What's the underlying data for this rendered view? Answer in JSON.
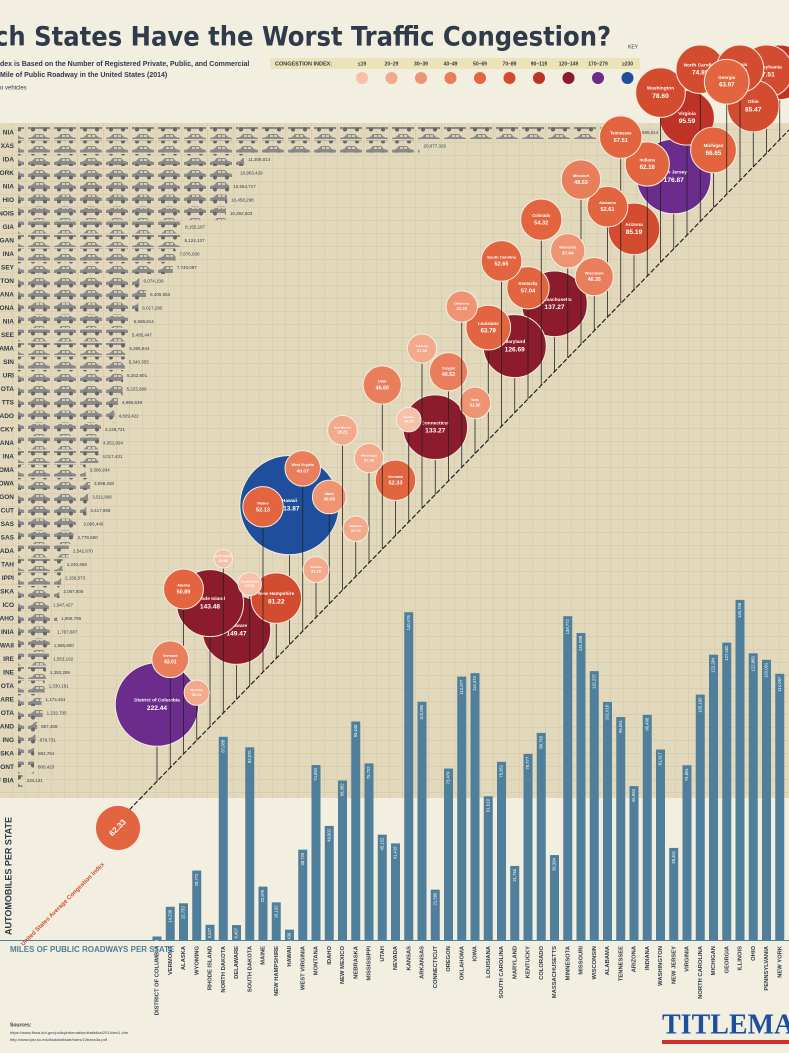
{
  "chart_data": {
    "type": "infographic",
    "title": "ch States Have the Worst Traffic Congestion?",
    "subtitle": [
      "dex is Based on the Number of Registered Private, Public, and Commercial",
      "Mile of Public Roadway in the United States (2014)",
      "o vehicles"
    ],
    "key": {
      "title": "KEY",
      "label": "CONGESTION INDEX:",
      "bins": [
        {
          "label": "≤19",
          "color": "#f6c1a8"
        },
        {
          "label": "20–29",
          "color": "#f3a98c"
        },
        {
          "label": "30–39",
          "color": "#ee9473"
        },
        {
          "label": "40–49",
          "color": "#e97e5c"
        },
        {
          "label": "50–69",
          "color": "#e2653f"
        },
        {
          "label": "70–89",
          "color": "#d44c30"
        },
        {
          "label": "90–119",
          "color": "#bf3327"
        },
        {
          "label": "120–149",
          "color": "#8c1c2c"
        },
        {
          "label": "170–279",
          "color": "#6b2c8c"
        },
        {
          "label": "≥230",
          "color": "#1f4e9c"
        }
      ]
    },
    "vehicles_axis_label": "AUTOMOBILES PER STATE",
    "roads_axis_label": "MILES OF PUBLIC ROADWAYS PER STATE",
    "average": {
      "label": "United States Average Congestion Index",
      "value": 62.33,
      "color": "#e2653f"
    },
    "ylim": [
      0,
      150000
    ],
    "xlim": [
      0,
      32000000
    ],
    "vehicles": {
      "color": "#8a8a8a",
      "labels": [
        "NIA",
        "XAS",
        "IDA",
        "ORK",
        "NIA",
        "HIO",
        "NOIS",
        "GIA",
        "GAN",
        "INA",
        "SEY",
        "TON",
        "ANA",
        "ONA",
        "NIA",
        "SEE",
        "AMA",
        "SIN",
        "URI",
        "OTA",
        "TTS",
        "ADO",
        "CKY",
        "ANA",
        "INA",
        "OMA",
        "OWA",
        "GON",
        "CUT",
        "SAS",
        "SAS",
        "ADA",
        "TAH",
        "IPPI",
        "SKA",
        "ICO",
        "AHO",
        "INIA",
        "WAII",
        "IRE",
        "INE",
        "OTA",
        "ARE",
        "OTA",
        "AND",
        "ING",
        "SKA",
        "ONT",
        "OF BIA"
      ],
      "values": [
        30686614,
        20077326,
        11306014,
        10903429,
        10564717,
        10458298,
        10392503,
        8155187,
        8124137,
        7876030,
        7740097,
        6074109,
        6405653,
        6017295,
        5588814,
        5495447,
        5366844,
        5340355,
        5252901,
        5223389,
        4996639,
        4829422,
        4148721,
        4051094,
        4017431,
        3386934,
        3598330,
        3511806,
        3417959,
        3066440,
        2778660,
        2542670,
        2240498,
        2158573,
        2067806,
        1547427,
        1958786,
        1767687,
        1585800,
        1553192,
        1393259,
        1330191,
        1174461,
        1232705,
        957469,
        878731,
        804761,
        800423,
        234131
      ],
      "value_labels": [
        "30,686,614",
        "20,077,326",
        "11,306,014",
        "10,903,429",
        "10,564,717",
        "10,458,298",
        "10,392,503",
        "8,155,187",
        "8,124,137",
        "7,876,030",
        "7,740,097",
        "6,074,109",
        "6,405,653",
        "6,017,295",
        "5,588,814",
        "5,495,447",
        "5,366,844",
        "5,340,355",
        "5,252,901",
        "5,223,389",
        "4,996,639",
        "4,829,422",
        "4,148,721",
        "4,051,094",
        "4,017,431",
        "3,386,934",
        "3,598,330",
        "3,511,806",
        "3,417,959",
        "3,066,440",
        "2,778,660",
        "2,542,670",
        "2,240,498",
        "2,158,573",
        "2,067,806",
        "1,547,427",
        "1,958,786",
        "1,767,687",
        "1,585,800",
        "1,553,192",
        "1,393,259",
        "1,330,191",
        "1,174,461",
        "1,232,705",
        "957,469",
        "878,731",
        "804,761",
        "800,423",
        "234,131"
      ]
    },
    "roads_color": "#4f7f9a",
    "states": [
      {
        "name": "District of Columbia",
        "roads": 1502,
        "roads_label": "1,502",
        "index": 222.44,
        "index_label": "222.44",
        "color": "#6b2c8c"
      },
      {
        "name": "Vermont",
        "roads": 14238,
        "roads_label": "14,238",
        "index": 43.01,
        "index_label": "43.01",
        "color": "#e97e5c"
      },
      {
        "name": "Alaska",
        "roads": 15733,
        "roads_label": "15,733",
        "index": 50.89,
        "index_label": "50.89",
        "color": "#e2653f"
      },
      {
        "name": "Wyoming",
        "roads": 29772,
        "roads_label": "29,772",
        "index": 20.31,
        "index_label": "20.31",
        "color": "#f3a98c"
      },
      {
        "name": "Rhode Island",
        "roads": 6527,
        "roads_label": "6,527",
        "index": 143.48,
        "index_label": "143.48",
        "color": "#8c1c2c"
      },
      {
        "name": "North Dakota",
        "roads": 87088,
        "roads_label": "87,088",
        "index": 10.86,
        "index_label": "10.86",
        "color": "#f6c1a8"
      },
      {
        "name": "Delaware",
        "roads": 6407,
        "roads_label": "6,407",
        "index": 149.47,
        "index_label": "149.47",
        "color": "#8c1c2c"
      },
      {
        "name": "South Dakota",
        "roads": 82576,
        "roads_label": "82,576",
        "index": 17.51,
        "index_label": "17.51",
        "color": "#f6c1a8"
      },
      {
        "name": "Maine",
        "roads": 22876,
        "roads_label": "22,876",
        "index": 52.13,
        "index_label": "52.13",
        "color": "#e2653f"
      },
      {
        "name": "New Hampshire",
        "roads": 16132,
        "roads_label": "16,132",
        "index": 81.22,
        "index_label": "81.22",
        "color": "#d44c30"
      },
      {
        "name": "Hawaii",
        "roads": 4439,
        "roads_label": "4,439",
        "index": 313.87,
        "index_label": "313.87",
        "color": "#1f4e9c"
      },
      {
        "name": "West Virginia",
        "roads": 38720,
        "roads_label": "38,720",
        "index": 40.07,
        "index_label": "40.07",
        "color": "#e97e5c"
      },
      {
        "name": "Montana",
        "roads": 74993,
        "roads_label": "74,993",
        "index": 21.15,
        "index_label": "21.15",
        "color": "#f3a98c"
      },
      {
        "name": "Idaho",
        "roads": 48902,
        "roads_label": "48,902",
        "index": 36.05,
        "index_label": "36.05",
        "color": "#ee9473"
      },
      {
        "name": "New Mexico",
        "roads": 68382,
        "roads_label": "68,382",
        "index": 28.21,
        "index_label": "28.21",
        "color": "#f3a98c"
      },
      {
        "name": "Nebraska",
        "roads": 93648,
        "roads_label": "93,648",
        "index": 20.75,
        "index_label": "20.75",
        "color": "#f3a98c"
      },
      {
        "name": "Mississippi",
        "roads": 75702,
        "roads_label": "75,702",
        "index": 27.28,
        "index_label": "27.28",
        "color": "#f3a98c"
      },
      {
        "name": "Utah",
        "roads": 45152,
        "roads_label": "45,152",
        "index": 46.6,
        "index_label": "46.60",
        "color": "#e97e5c"
      },
      {
        "name": "Nevada",
        "roads": 41415,
        "roads_label": "41,415",
        "index": 52.33,
        "index_label": "52.33",
        "color": "#e2653f"
      },
      {
        "name": "Kansas",
        "roads": 140476,
        "roads_label": "140,476",
        "index": 19.1,
        "index_label": "19.10",
        "color": "#f6c1a8"
      },
      {
        "name": "Arkansas",
        "roads": 102090,
        "roads_label": "102,090",
        "index": 27.08,
        "index_label": "27.08",
        "color": "#f3a98c"
      },
      {
        "name": "Connecticut",
        "roads": 21580,
        "roads_label": "21,580",
        "index": 133.27,
        "index_label": "133.27",
        "color": "#8c1c2c"
      },
      {
        "name": "Oregon",
        "roads": 73479,
        "roads_label": "73,479",
        "index": 46.52,
        "index_label": "46.52",
        "color": "#e97e5c"
      },
      {
        "name": "Oklahoma",
        "roads": 112877,
        "roads_label": "112,877",
        "index": 31.22,
        "index_label": "31.22",
        "color": "#ee9473"
      },
      {
        "name": "Iowa",
        "roads": 114373,
        "roads_label": "114,373",
        "index": 31.5,
        "index_label": "31.50",
        "color": "#ee9473"
      },
      {
        "name": "Louisiana",
        "roads": 61619,
        "roads_label": "61,619",
        "index": 63.79,
        "index_label": "63.79",
        "color": "#e2653f"
      },
      {
        "name": "South Carolina",
        "roads": 76361,
        "roads_label": "76,361",
        "index": 52.65,
        "index_label": "52.65",
        "color": "#e2653f"
      },
      {
        "name": "Maryland",
        "roads": 31746,
        "roads_label": "31,746",
        "index": 126.69,
        "index_label": "126.69",
        "color": "#8c1c2c"
      },
      {
        "name": "Kentucky",
        "roads": 79777,
        "roads_label": "79,777",
        "index": 57.04,
        "index_label": "57.04",
        "color": "#e2653f"
      },
      {
        "name": "Colorado",
        "roads": 88760,
        "roads_label": "88,760",
        "index": 54.32,
        "index_label": "54.32",
        "color": "#e2653f"
      },
      {
        "name": "Massachusetts",
        "roads": 36394,
        "roads_label": "36,394",
        "index": 137.27,
        "index_label": "137.27",
        "color": "#8c1c2c"
      },
      {
        "name": "Minnesota",
        "roads": 138772,
        "roads_label": "138,772",
        "index": 37.64,
        "index_label": "37.64",
        "color": "#ee9473"
      },
      {
        "name": "Missouri",
        "roads": 131588,
        "roads_label": "131,588",
        "index": 49.53,
        "index_label": "49.53",
        "color": "#e97e5c"
      },
      {
        "name": "Wisconsin",
        "roads": 115237,
        "roads_label": "115,237",
        "index": 46.35,
        "index_label": "46.35",
        "color": "#e97e5c"
      },
      {
        "name": "Alabama",
        "roads": 102018,
        "roads_label": "102,018",
        "index": 52.61,
        "index_label": "52.61",
        "color": "#e2653f"
      },
      {
        "name": "Tennessee",
        "roads": 95561,
        "roads_label": "95,561",
        "index": 57.51,
        "index_label": "57.51",
        "color": "#e2653f"
      },
      {
        "name": "Arizona",
        "roads": 65953,
        "roads_label": "65,953",
        "index": 85.19,
        "index_label": "85.19",
        "color": "#d44c30"
      },
      {
        "name": "Indiana",
        "roads": 96498,
        "roads_label": "96,498",
        "index": 62.16,
        "index_label": "62.16",
        "color": "#e2653f"
      },
      {
        "name": "Washington",
        "roads": 81617,
        "roads_label": "81,617",
        "index": 78.6,
        "index_label": "78.60",
        "color": "#d44c30"
      },
      {
        "name": "New Jersey",
        "roads": 39461,
        "roads_label": "39,461",
        "index": 176.87,
        "index_label": "176.87",
        "color": "#6b2c8c"
      },
      {
        "name": "Virginia",
        "roads": 74901,
        "roads_label": "74,901",
        "index": 95.59,
        "index_label": "95.59",
        "color": "#bf3327"
      },
      {
        "name": "North Carolina",
        "roads": 105180,
        "roads_label": "105,180",
        "index": 74.89,
        "index_label": "74.89",
        "color": "#d44c30"
      },
      {
        "name": "Michigan",
        "roads": 122284,
        "roads_label": "122,284",
        "index": 66.65,
        "index_label": "66.65",
        "color": "#e2653f"
      },
      {
        "name": "Georgia",
        "roads": 127452,
        "roads_label": "127,452",
        "index": 63.97,
        "index_label": "63.97",
        "color": "#e2653f"
      },
      {
        "name": "Illinois",
        "roads": 145769,
        "roads_label": "145,769",
        "index": 71.31,
        "index_label": "71.31",
        "color": "#d44c30"
      },
      {
        "name": "Ohio",
        "roads": 122883,
        "roads_label": "122,883",
        "index": 85.47,
        "index_label": "85.47",
        "color": "#d44c30"
      },
      {
        "name": "Pennsylvania",
        "roads": 120091,
        "roads_label": "120,091",
        "index": 87.51,
        "index_label": "87.51",
        "color": "#d44c30"
      },
      {
        "name": "New York",
        "roads": 114097,
        "roads_label": "114,097",
        "index": 94.97,
        "index_label": "94.97",
        "color": "#bf3327"
      }
    ],
    "sources": {
      "title": "Sources:",
      "lines": [
        "https://www.fhwa.dot.gov/policyinformation/statistics/2014/mv1.cfm",
        "http://www.ipsr.ku.edu/ksdata/ksah/trans/10trans3a.pdf"
      ]
    },
    "logo": "TITLEMA"
  }
}
